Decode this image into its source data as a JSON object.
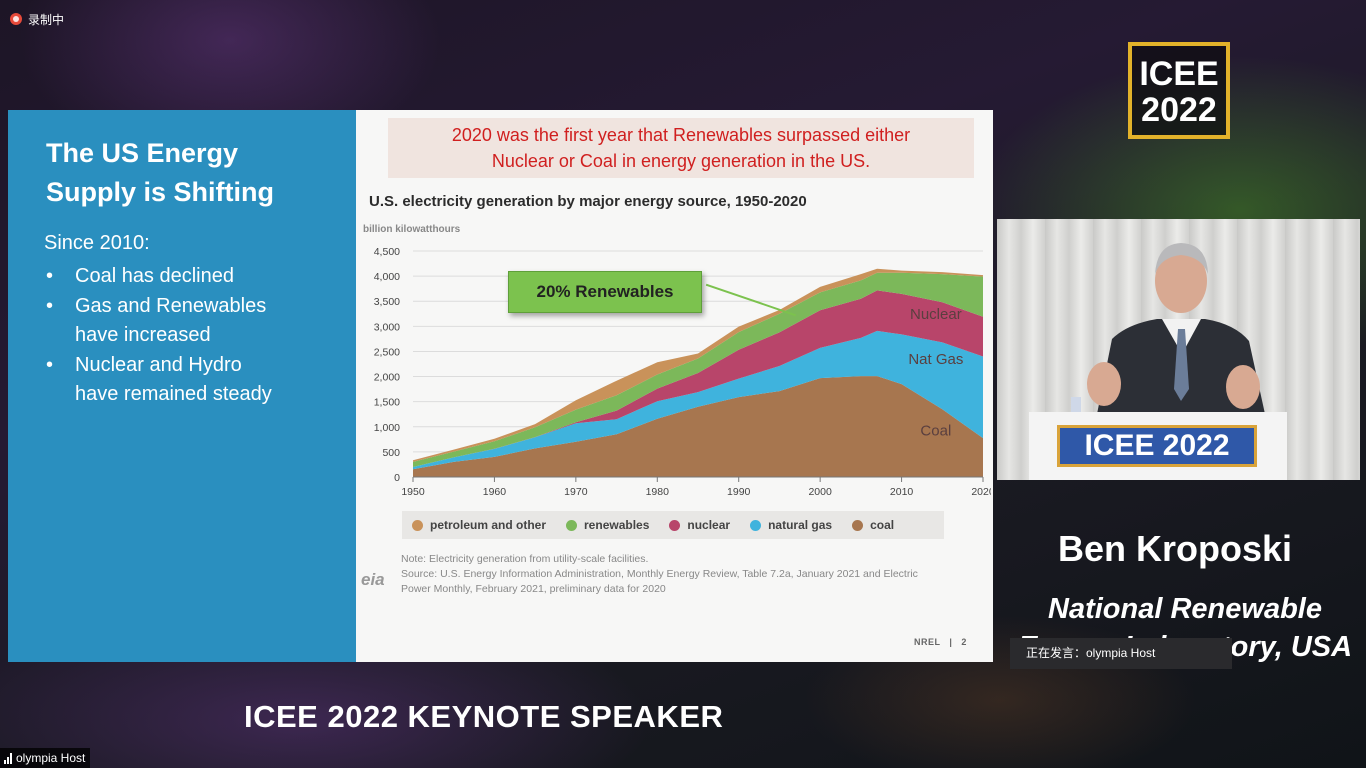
{
  "recording": {
    "label": "录制中",
    "color": "#e64a3a"
  },
  "logo": {
    "line1": "ICEE",
    "line2": "2022",
    "border_color": "#e2b22a"
  },
  "slide": {
    "title_line1": "The US Energy",
    "title_line2": "Supply is Shifting",
    "since": "Since 2010:",
    "bullets": [
      {
        "line1": "Coal has declined",
        "line2": ""
      },
      {
        "line1": "Gas and Renewables",
        "line2": "have increased"
      },
      {
        "line1": "Nuclear and Hydro",
        "line2": "have remained steady"
      }
    ],
    "banner_line1": "2020 was the first year that Renewables surpassed either",
    "banner_line2": "Nuclear or Coal in energy generation in the US.",
    "chart_title": "U.S. electricity generation by major energy source, 1950-2020",
    "y_unit": "billion kilowatthours",
    "callout": "20% Renewables",
    "legend": [
      {
        "label": "petroleum and other",
        "color": "#c9925a"
      },
      {
        "label": "renewables",
        "color": "#7cb85a"
      },
      {
        "label": "nuclear",
        "color": "#b8456a"
      },
      {
        "label": "natural gas",
        "color": "#3fb3dd"
      },
      {
        "label": "coal",
        "color": "#a7764f"
      }
    ],
    "note_line1": "Note: Electricity generation from utility-scale facilities.",
    "note_line2": "Source: U.S. Energy Information Administration, Monthly Energy Review, Table 7.2a, January 2021 and Electric",
    "note_line3": "Power Monthly, February 2021, preliminary data for 2020",
    "eia_logo": "eia",
    "footer_org": "NREL",
    "footer_sep": "|",
    "page_number": "2"
  },
  "chart_data": {
    "type": "area",
    "title": "U.S. electricity generation by major energy source, 1950-2020",
    "ylabel": "billion kilowatthours",
    "ylim": [
      0,
      4500
    ],
    "xlim": [
      1950,
      2020
    ],
    "y_ticks": [
      "4,500",
      "4,000",
      "3,500",
      "3,000",
      "2,500",
      "2,000",
      "1,500",
      "1,000",
      "500",
      "0"
    ],
    "x_ticks": [
      "1950",
      "1960",
      "1970",
      "1980",
      "1990",
      "2000",
      "2010",
      "2020"
    ],
    "stacked": true,
    "x": [
      1950,
      1955,
      1960,
      1965,
      1970,
      1975,
      1980,
      1985,
      1990,
      1995,
      2000,
      2005,
      2007,
      2010,
      2015,
      2020
    ],
    "series": [
      {
        "name": "coal",
        "color": "#a7764f",
        "values": [
          155,
          300,
          400,
          570,
          700,
          850,
          1160,
          1400,
          1590,
          1710,
          1970,
          2010,
          2010,
          1850,
          1350,
          775
        ]
      },
      {
        "name": "natural gas",
        "color": "#3fb3dd",
        "values": [
          45,
          90,
          160,
          220,
          370,
          300,
          350,
          290,
          370,
          500,
          600,
          760,
          900,
          990,
          1330,
          1625
        ]
      },
      {
        "name": "nuclear",
        "color": "#b8456a",
        "values": [
          0,
          0,
          1,
          4,
          22,
          172,
          250,
          380,
          575,
          670,
          750,
          780,
          805,
          805,
          800,
          790
        ]
      },
      {
        "name": "renewables",
        "color": "#7cb85a",
        "values": [
          100,
          115,
          150,
          195,
          250,
          305,
          280,
          290,
          350,
          370,
          355,
          365,
          350,
          420,
          560,
          800
        ]
      },
      {
        "name": "petroleum and other",
        "color": "#c9925a",
        "values": [
          35,
          40,
          50,
          65,
          185,
          290,
          245,
          100,
          110,
          75,
          110,
          125,
          80,
          45,
          40,
          30
        ]
      }
    ],
    "area_labels": [
      {
        "text": "Nuclear",
        "series": "nuclear"
      },
      {
        "text": "Nat Gas",
        "series": "natural gas"
      },
      {
        "text": "Coal",
        "series": "coal"
      }
    ],
    "legend_position": "bottom",
    "grid": true
  },
  "speaker": {
    "podium_sign": "ICEE 2022",
    "name": "Ben Kroposki",
    "org_line1": "National Renewable",
    "org_line2": "Energy Laboratory, USA"
  },
  "now_speaking": "正在发言：olympia Host",
  "keynote_title": "ICEE 2022 KEYNOTE SPEAKER",
  "host_tag": "olympia Host"
}
